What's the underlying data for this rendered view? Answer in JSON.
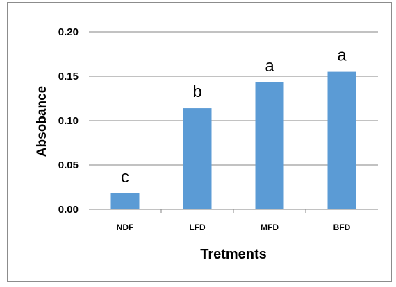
{
  "chart_data": {
    "type": "bar",
    "categories": [
      "NDF",
      "LFD",
      "MFD",
      "BFD"
    ],
    "values": [
      0.018,
      0.114,
      0.143,
      0.155
    ],
    "annotations": [
      "c",
      "b",
      "a",
      "a"
    ],
    "xlabel": "Tretments",
    "ylabel": "Absobance",
    "ylim": [
      0,
      0.2
    ],
    "yticks": [
      "0.00",
      "0.05",
      "0.10",
      "0.15",
      "0.20"
    ],
    "grid": true,
    "legend": "none",
    "bar_color": "#5b9bd5",
    "grid_color": "#868686"
  }
}
